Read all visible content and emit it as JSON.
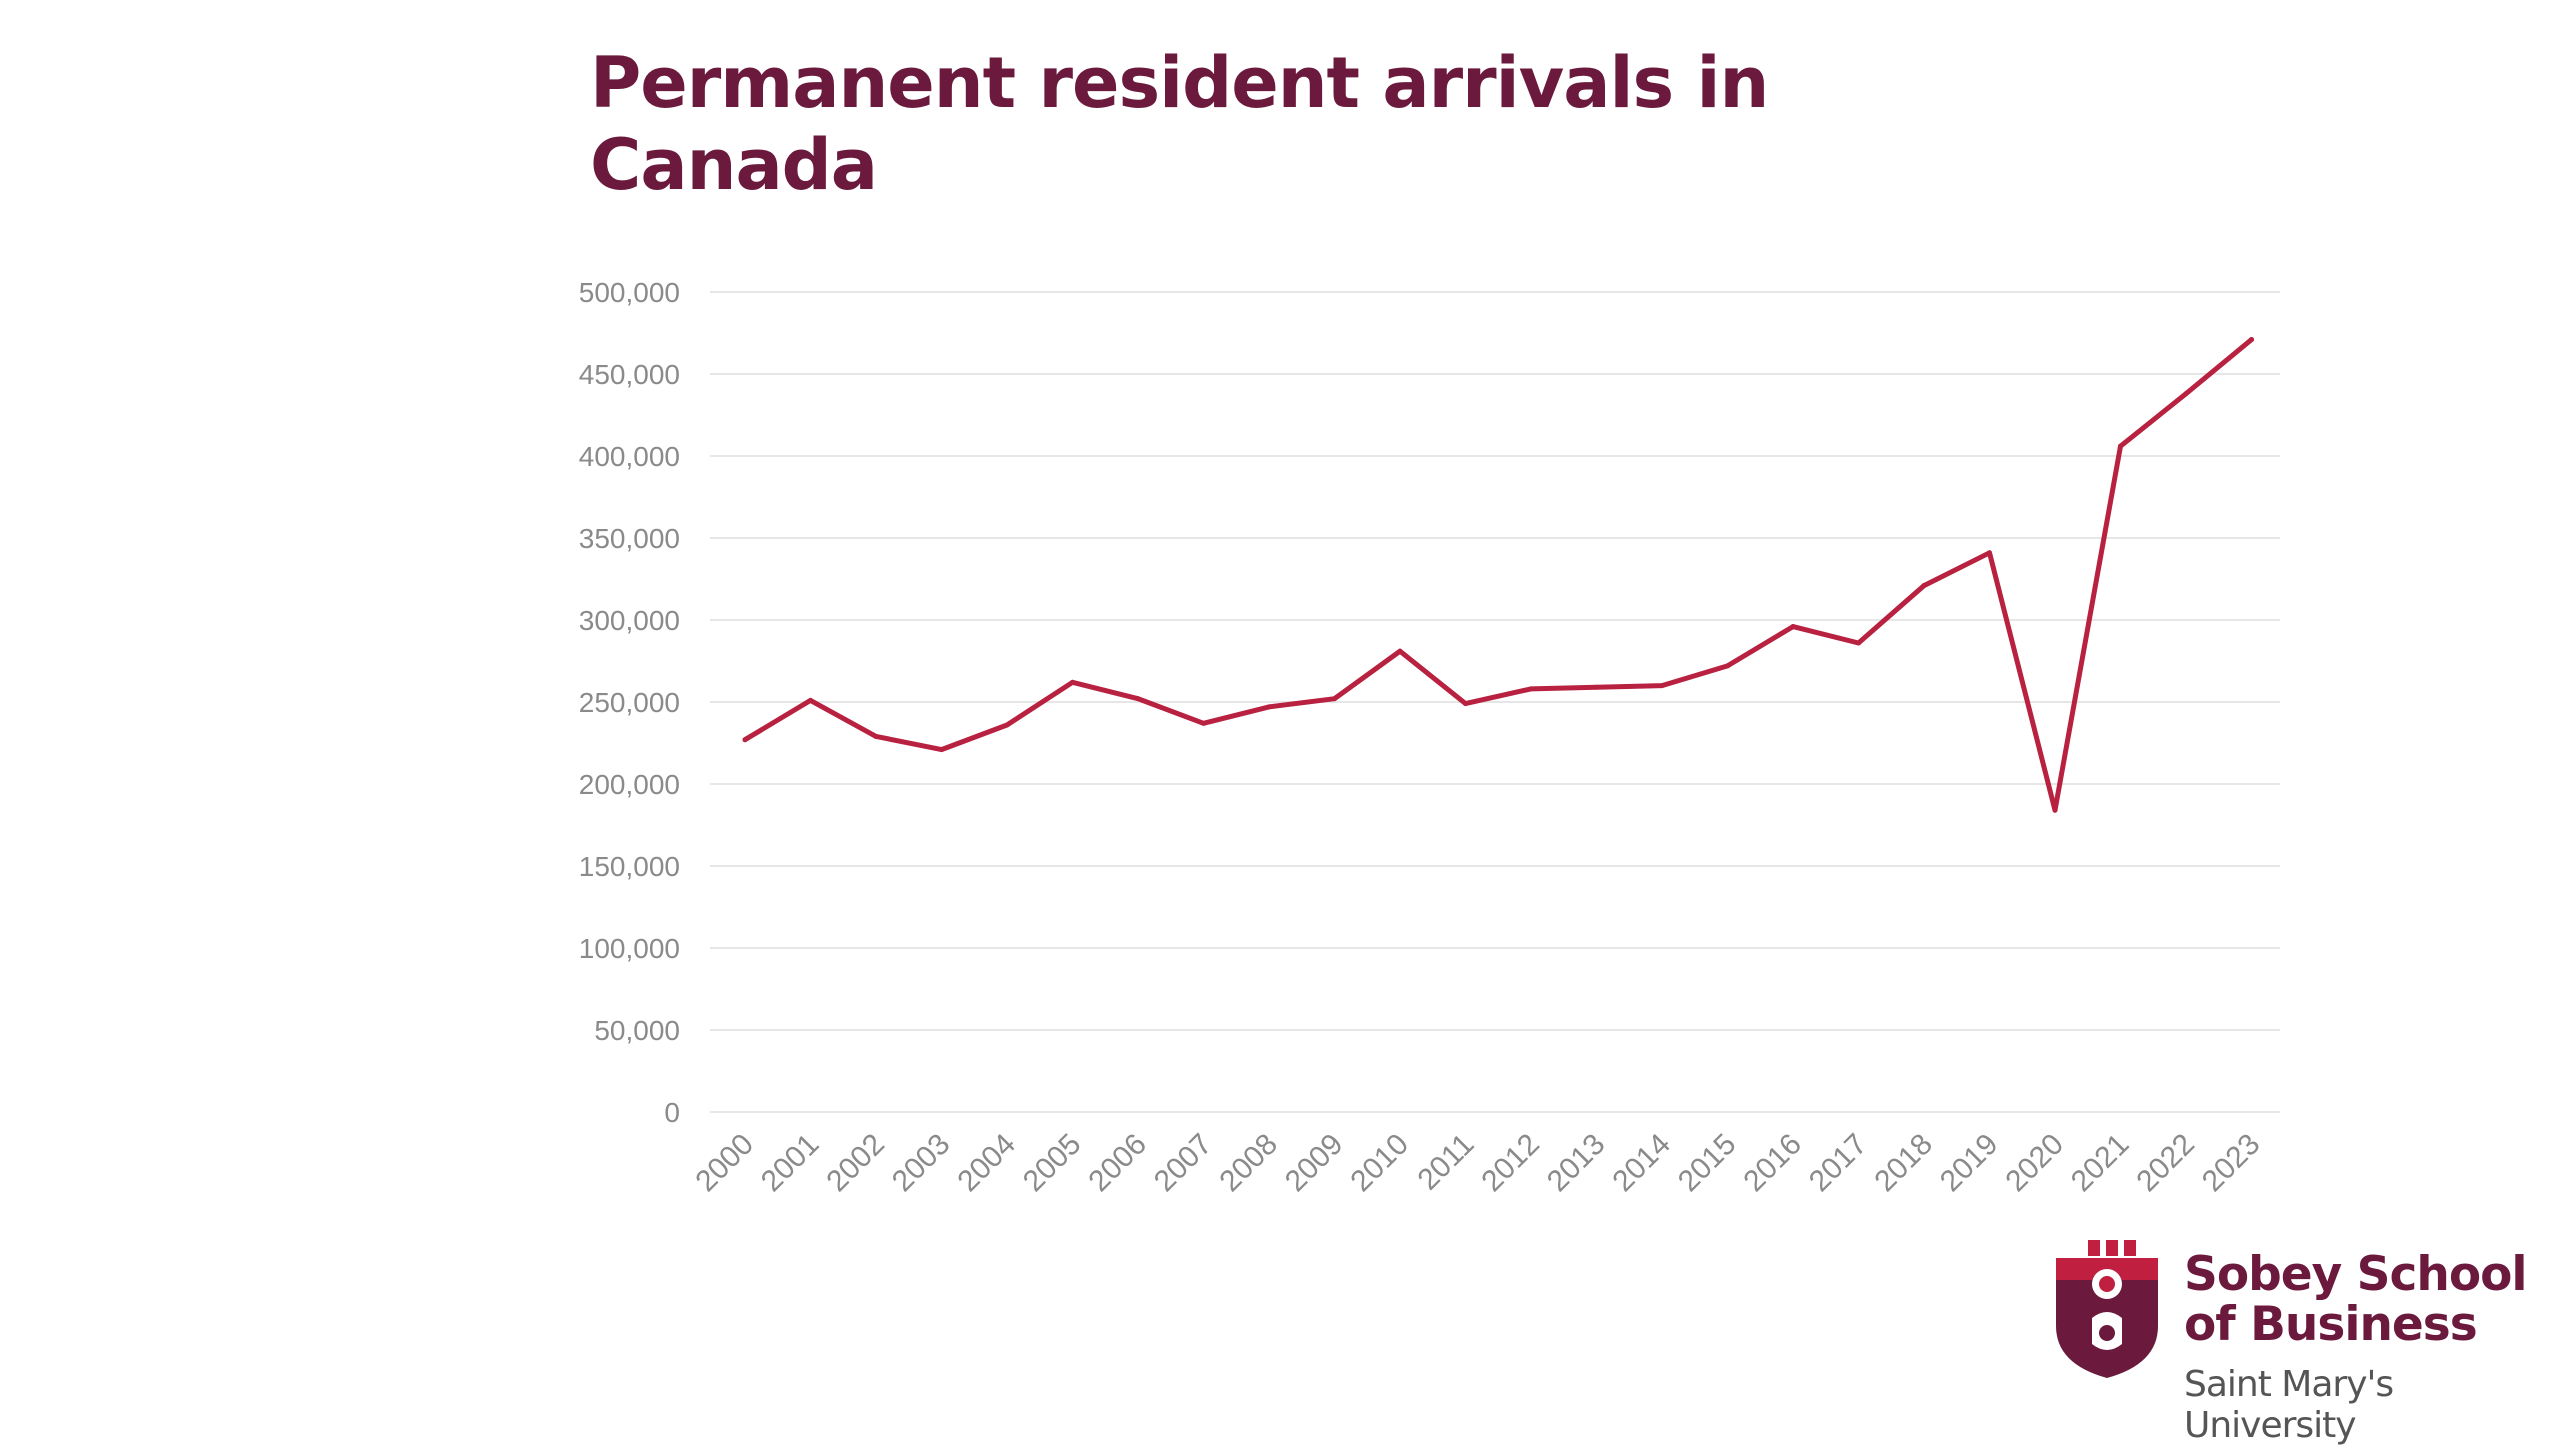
{
  "title": "Permanent resident arrivals in Canada",
  "logo": {
    "line1": "Sobey School",
    "line2": "of Business",
    "subtitle": "Saint Mary's University"
  },
  "colors": {
    "title": "#6b1a3d",
    "series_line": "#b8213f",
    "gridline": "#e6e6e6",
    "tick_label": "#8a8a8a"
  },
  "chart_data": {
    "type": "line",
    "title": "Permanent resident arrivals in Canada",
    "xlabel": "",
    "ylabel": "",
    "ylim": [
      0,
      500000
    ],
    "yticks": [
      0,
      50000,
      100000,
      150000,
      200000,
      250000,
      300000,
      350000,
      400000,
      450000,
      500000
    ],
    "ytick_labels": [
      "0",
      "50,000",
      "100,000",
      "150,000",
      "200,000",
      "250,000",
      "300,000",
      "350,000",
      "400,000",
      "450,000",
      "500,000"
    ],
    "grid": true,
    "legend": "none",
    "categories": [
      "2000",
      "2001",
      "2002",
      "2003",
      "2004",
      "2005",
      "2006",
      "2007",
      "2008",
      "2009",
      "2010",
      "2011",
      "2012",
      "2013",
      "2014",
      "2015",
      "2016",
      "2017",
      "2018",
      "2019",
      "2020",
      "2021",
      "2022",
      "2023"
    ],
    "series": [
      {
        "values": [
          227000,
          251000,
          229000,
          221000,
          236000,
          262000,
          252000,
          237000,
          247000,
          252000,
          281000,
          249000,
          258000,
          259000,
          260000,
          272000,
          296000,
          286000,
          321000,
          341000,
          184000,
          406000,
          438000,
          471000
        ]
      }
    ]
  }
}
